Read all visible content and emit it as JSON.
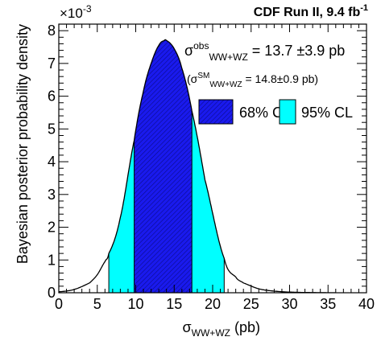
{
  "chart_data": {
    "type": "area",
    "title": "CDF Run II, 9.4 fb",
    "title_superscript": "-1",
    "xlabel": {
      "main": "σ",
      "sub": "WW+WZ",
      "unit": " (pb)"
    },
    "ylabel": "Bayesian posterior probability density",
    "y_exponent": {
      "base": "×10",
      "power": "-3"
    },
    "xlim": [
      0,
      40
    ],
    "ylim": [
      0,
      8.2
    ],
    "x_ticks": [
      0,
      5,
      10,
      15,
      20,
      25,
      30,
      35,
      40
    ],
    "y_ticks": [
      0,
      1,
      2,
      3,
      4,
      5,
      6,
      7,
      8
    ],
    "posterior": {
      "x": [
        0,
        2,
        4,
        5,
        6,
        6.5,
        8,
        9.8,
        11,
        12,
        13,
        13.7,
        14,
        15,
        16,
        17.3,
        19,
        21.5,
        23,
        24,
        26,
        28,
        30,
        33,
        36
      ],
      "y": [
        0.03,
        0.1,
        0.3,
        0.55,
        0.95,
        1.2,
        2.3,
        4.65,
        6.15,
        7.0,
        7.55,
        7.7,
        7.7,
        7.45,
        6.85,
        5.55,
        3.45,
        1.05,
        0.48,
        0.3,
        0.12,
        0.05,
        0.02,
        0.005,
        0.0
      ]
    },
    "intervals": {
      "cl68": [
        9.8,
        17.3
      ],
      "cl95": [
        6.5,
        21.5
      ]
    },
    "colors": {
      "cl68": "#1a1aee",
      "cl95": "#00ffff",
      "curve": "#000000"
    },
    "annotations": {
      "obs": {
        "prefix": "σ",
        "sup": "obs",
        "sub": "WW+WZ",
        "text": " = 13.7 ±3.9 pb"
      },
      "sm": {
        "open": "(σ",
        "sup": "SM",
        "sub": "WW+WZ",
        "text": " = 14.8±0.9 pb)"
      }
    },
    "legend": {
      "placement": "top-right",
      "entries": [
        {
          "label": "68% CL",
          "color": "#1a1aee"
        },
        {
          "label": "95% CL",
          "color": "#00ffff"
        }
      ]
    }
  }
}
